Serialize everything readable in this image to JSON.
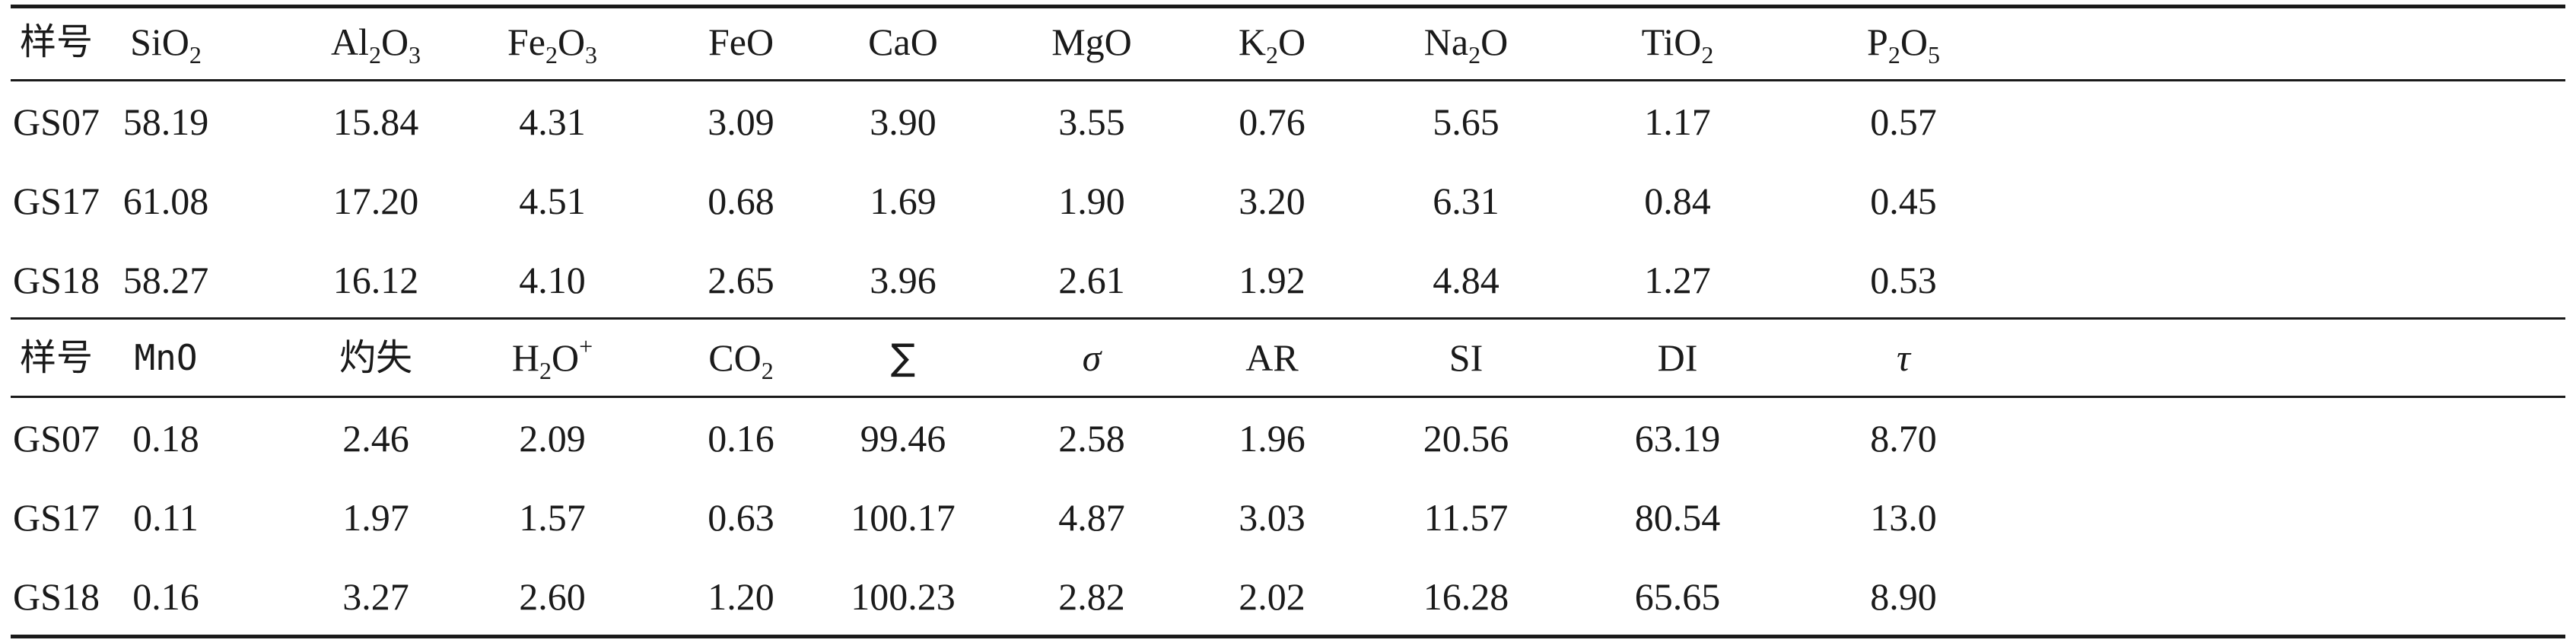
{
  "table": {
    "header1": [
      "样号",
      "SiO|2",
      "Al|2|O|3",
      "Fe|2|O|3",
      "FeO",
      "CaO",
      "MgO",
      "K|2|O",
      "Na|2|O",
      "TiO|2",
      "P|2|O|5"
    ],
    "rows1": [
      [
        "GS07",
        "58.19",
        "15.84",
        "4.31",
        "3.09",
        "3.90",
        "3.55",
        "0.76",
        "5.65",
        "1.17",
        "0.57"
      ],
      [
        "GS17",
        "61.08",
        "17.20",
        "4.51",
        "0.68",
        "1.69",
        "1.90",
        "3.20",
        "6.31",
        "0.84",
        "0.45"
      ],
      [
        "GS18",
        "58.27",
        "16.12",
        "4.10",
        "2.65",
        "3.96",
        "2.61",
        "1.92",
        "4.84",
        "1.27",
        "0.53"
      ]
    ],
    "header2": [
      "样号",
      "MnO",
      "灼失",
      "H|2|O|+",
      "CO|2",
      "∑",
      "σ",
      "AR",
      "SI",
      "DI",
      "τ"
    ],
    "rows2": [
      [
        "GS07",
        "0.18",
        "2.46",
        "2.09",
        "0.16",
        "99.46",
        "2.58",
        "1.96",
        "20.56",
        "63.19",
        "8.70"
      ],
      [
        "GS17",
        "0.11",
        "1.97",
        "1.57",
        "0.63",
        "100.17",
        "4.87",
        "3.03",
        "11.57",
        "80.54",
        "13.0"
      ],
      [
        "GS18",
        "0.16",
        "3.27",
        "2.60",
        "1.20",
        "100.23",
        "2.82",
        "2.02",
        "16.28",
        "65.65",
        "8.90"
      ]
    ]
  }
}
